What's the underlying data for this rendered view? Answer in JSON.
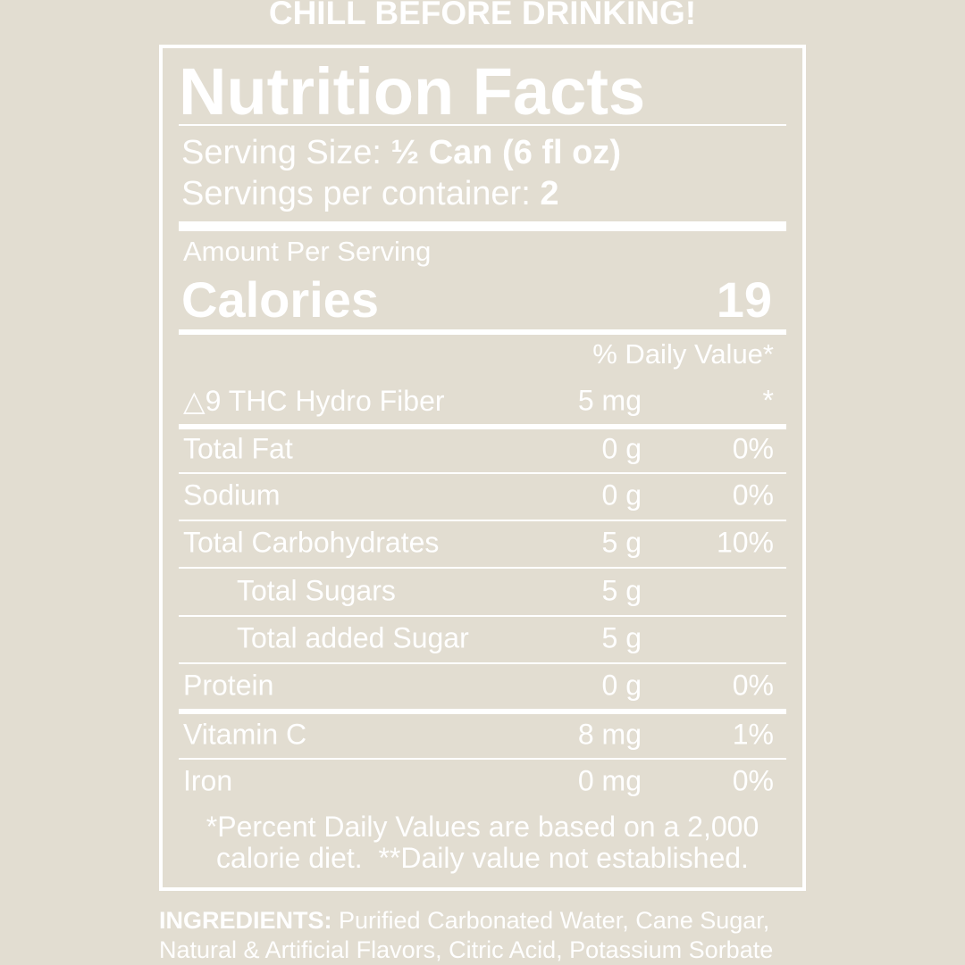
{
  "header": "CHILL BEFORE DRINKING!",
  "title": "Nutrition Facts",
  "serving_size": {
    "label": "Serving Size:",
    "value": "½ Can (6 fl oz)"
  },
  "servings": {
    "label": "Servings per container:",
    "value": "2"
  },
  "amount_per_serving": "Amount Per Serving",
  "calories": {
    "label": "Calories",
    "value": "19"
  },
  "daily_value_header": "% Daily Value*",
  "rows": [
    {
      "name": "△9 THC Hydro Fiber",
      "amount": "5 mg",
      "daily_value": "*"
    },
    {
      "name": "Total Fat",
      "amount": "0 g",
      "daily_value": "0%"
    },
    {
      "name": "Sodium",
      "amount": "0 g",
      "daily_value": "0%"
    },
    {
      "name": "Total Carbohydrates",
      "amount": "5 g",
      "daily_value": "10%"
    },
    {
      "name": "Total Sugars",
      "amount": "5 g"
    },
    {
      "name": "Total added Sugar",
      "amount": "5 g"
    },
    {
      "name": "Protein",
      "amount": "0 g",
      "daily_value": "0%"
    },
    {
      "name": "Vitamin C",
      "amount": "8 mg",
      "daily_value": "1%"
    },
    {
      "name": "Iron",
      "amount": "0 mg",
      "daily_value": "0%"
    }
  ],
  "footnote": [
    "*Percent Daily Values are based on a 2,000",
    "calorie diet.  **Daily value not established."
  ],
  "ingredients": {
    "label": "INGREDIENTS:",
    "text": "Purified Carbonated Water, Cane Sugar, Natural & Artificial Flavors, Citric Acid, Potassium Sorbate"
  }
}
